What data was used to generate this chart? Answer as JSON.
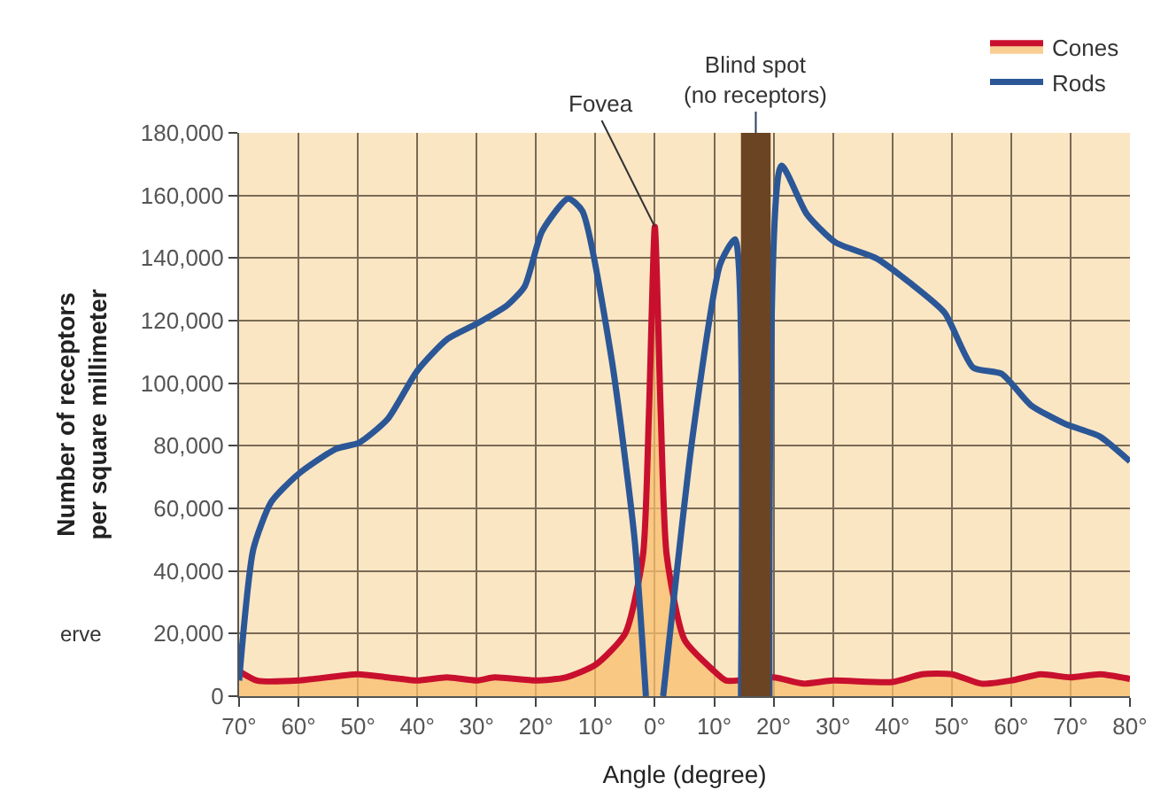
{
  "chart_data": {
    "type": "line",
    "xlabel": "Angle (degree)",
    "ylabel": "Number of receptors\nper square millimeter",
    "xlim": [
      -70,
      80
    ],
    "ylim": [
      0,
      180000
    ],
    "xticks": [
      {
        "value": -70,
        "label": "70°"
      },
      {
        "value": -60,
        "label": "60°"
      },
      {
        "value": -50,
        "label": "50°"
      },
      {
        "value": -40,
        "label": "40°"
      },
      {
        "value": -30,
        "label": "30°"
      },
      {
        "value": -20,
        "label": "20°"
      },
      {
        "value": -10,
        "label": "10°"
      },
      {
        "value": 0,
        "label": "0°"
      },
      {
        "value": 10,
        "label": "10°"
      },
      {
        "value": 20,
        "label": "20°"
      },
      {
        "value": 30,
        "label": "30°"
      },
      {
        "value": 40,
        "label": "40°"
      },
      {
        "value": 50,
        "label": "50°"
      },
      {
        "value": 60,
        "label": "60°"
      },
      {
        "value": 70,
        "label": "70°"
      },
      {
        "value": 80,
        "label": "80°"
      }
    ],
    "yticks": [
      {
        "value": 0,
        "label": "0"
      },
      {
        "value": 20000,
        "label": "20,000"
      },
      {
        "value": 40000,
        "label": "40,000"
      },
      {
        "value": 60000,
        "label": "60,000"
      },
      {
        "value": 80000,
        "label": "80,000"
      },
      {
        "value": 100000,
        "label": "100,000"
      },
      {
        "value": 120000,
        "label": "120,000"
      },
      {
        "value": 140000,
        "label": "140,000"
      },
      {
        "value": 160000,
        "label": "160,000"
      },
      {
        "value": 180000,
        "label": "180,000"
      }
    ],
    "grid": true,
    "legend": "top right",
    "marker": "none",
    "line_style": "solid",
    "series": [
      {
        "name": "Cones",
        "type": "area",
        "color": "#c8102e",
        "x": [
          -70,
          -67,
          -60,
          -50,
          -45,
          -40,
          -35,
          -30,
          -27,
          -20,
          -15,
          -10,
          -5,
          -2,
          -1,
          0,
          1,
          2,
          5,
          10,
          12,
          20,
          25,
          30,
          40,
          45,
          50,
          55,
          60,
          65,
          70,
          75,
          80
        ],
        "values": [
          8000,
          5000,
          5000,
          7000,
          6000,
          5000,
          6000,
          5000,
          6000,
          5000,
          6000,
          10000,
          20000,
          45000,
          90000,
          150000,
          90000,
          45000,
          18000,
          8000,
          5000,
          6000,
          4000,
          5000,
          4500,
          7000,
          7000,
          4000,
          5000,
          7000,
          6000,
          7000,
          5500
        ]
      },
      {
        "name": "Rods",
        "color": "#2b5797",
        "x": [
          -70,
          -67.6,
          -64.6,
          -60,
          -53.7,
          -49.8,
          -45,
          -40,
          -35,
          -30,
          -24.8,
          -21.9,
          -19,
          -14.6,
          -12.2,
          -7.3,
          -3.4,
          -1.5,
          null,
          1.4,
          6.4,
          11,
          13.5,
          14.5,
          null,
          19.3,
          21.3,
          25.6,
          30.4,
          37.2,
          43,
          48.8,
          53.6,
          58.4,
          63.3,
          69.1,
          74.9,
          80
        ],
        "values": [
          5000,
          47000,
          62000,
          71000,
          79000,
          81000,
          88500,
          104000,
          114000,
          119000,
          125000,
          131000,
          148500,
          159000,
          155000,
          108000,
          50000,
          0,
          null,
          0,
          83500,
          138000,
          146000,
          0,
          null,
          0,
          169500,
          154000,
          145000,
          140000,
          132000,
          122500,
          105000,
          103000,
          93000,
          87000,
          83000,
          75000
        ]
      }
    ],
    "bands": [
      {
        "axis": "x",
        "from": 14.5,
        "to": 19.5,
        "label": "Blind spot\n(no receptors)",
        "color": "#6b4423"
      }
    ],
    "annotations": [
      {
        "text": "Fovea",
        "x": 0,
        "y": 150000
      },
      "erve"
    ]
  }
}
